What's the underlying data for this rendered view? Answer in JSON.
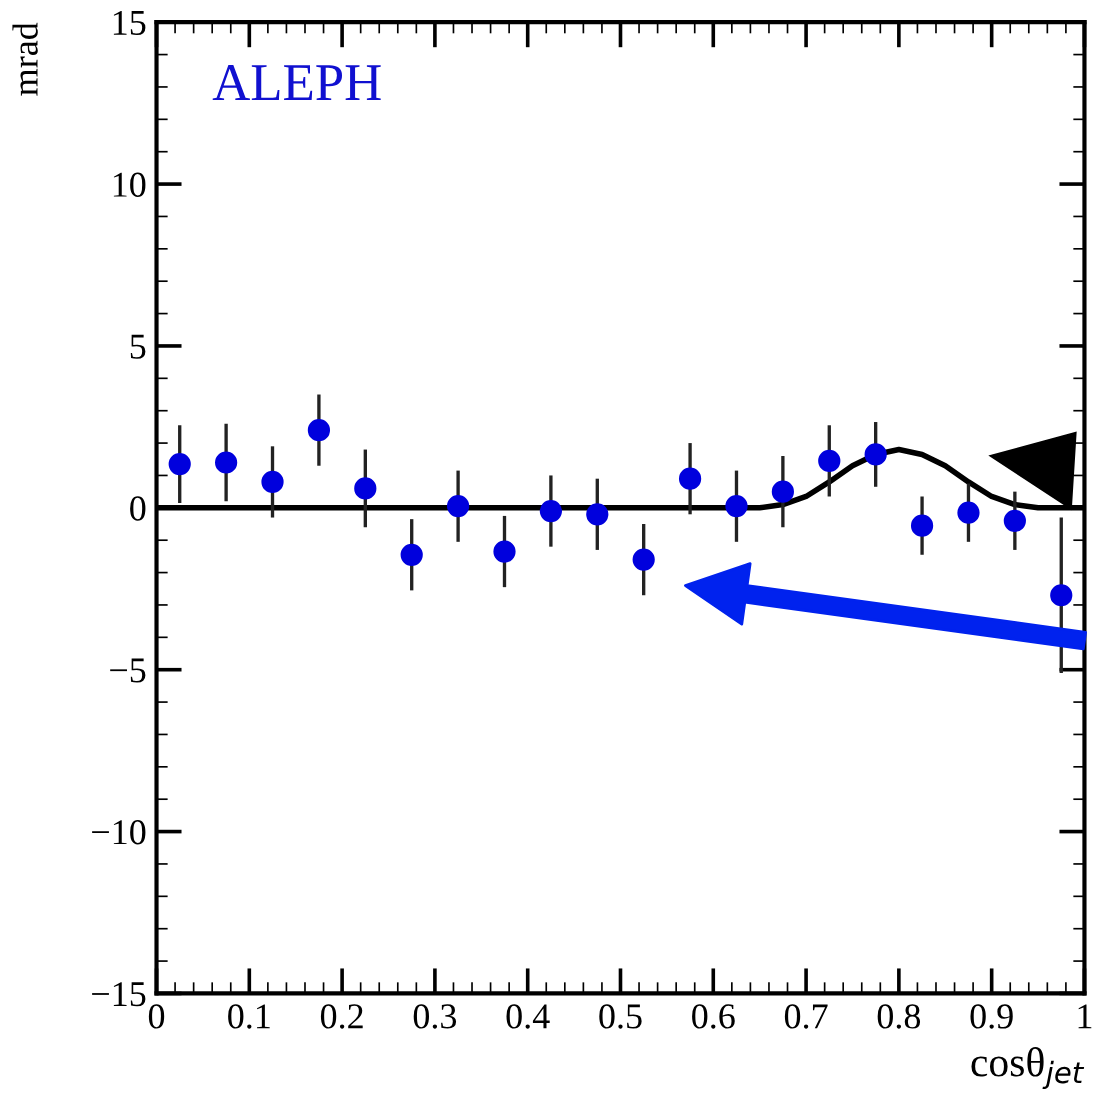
{
  "chart_data": {
    "type": "scatter",
    "xlabel": "cosθ$_{jet}$",
    "ylabel": "mrad",
    "annotations": [
      "ALEPH"
    ],
    "x": [
      0.025,
      0.075,
      0.125,
      0.175,
      0.225,
      0.275,
      0.325,
      0.375,
      0.425,
      0.475,
      0.525,
      0.575,
      0.625,
      0.675,
      0.725,
      0.775,
      0.825,
      0.875,
      0.925,
      0.975
    ],
    "series": [
      {
        "color": "#0000dd",
        "marker": "circle",
        "values": [
          1.35,
          1.4,
          0.8,
          2.4,
          0.6,
          -1.45,
          0.05,
          -1.35,
          -0.1,
          -0.2,
          -1.6,
          0.9,
          0.05,
          0.5,
          1.45,
          1.65,
          -0.55,
          -0.15,
          -0.4,
          -2.7
        ],
        "errors": [
          1.2,
          1.2,
          1.1,
          1.1,
          1.2,
          1.1,
          1.1,
          1.1,
          1.1,
          1.1,
          1.1,
          1.1,
          1.1,
          1.1,
          1.1,
          1.0,
          0.9,
          0.9,
          0.9,
          2.4
        ]
      },
      {
        "type": "line",
        "color": "#000000",
        "x": [
          0,
          0.65,
          0.675,
          0.7,
          0.725,
          0.75,
          0.775,
          0.8,
          0.825,
          0.85,
          0.875,
          0.9,
          0.925,
          0.95,
          1.0
        ],
        "values": [
          0,
          0,
          0.1,
          0.35,
          0.8,
          1.3,
          1.65,
          1.8,
          1.65,
          1.3,
          0.8,
          0.35,
          0.1,
          0,
          0
        ]
      }
    ],
    "xlim": [
      0,
      1
    ],
    "ylim": [
      -15,
      15
    ],
    "xticks": [
      0,
      0.1,
      0.2,
      0.3,
      0.4,
      0.5,
      0.6,
      0.7,
      0.8,
      0.9,
      1
    ],
    "yticks": [
      -15,
      -10,
      -5,
      0,
      5,
      10,
      15
    ],
    "grid": false,
    "legend": false
  }
}
